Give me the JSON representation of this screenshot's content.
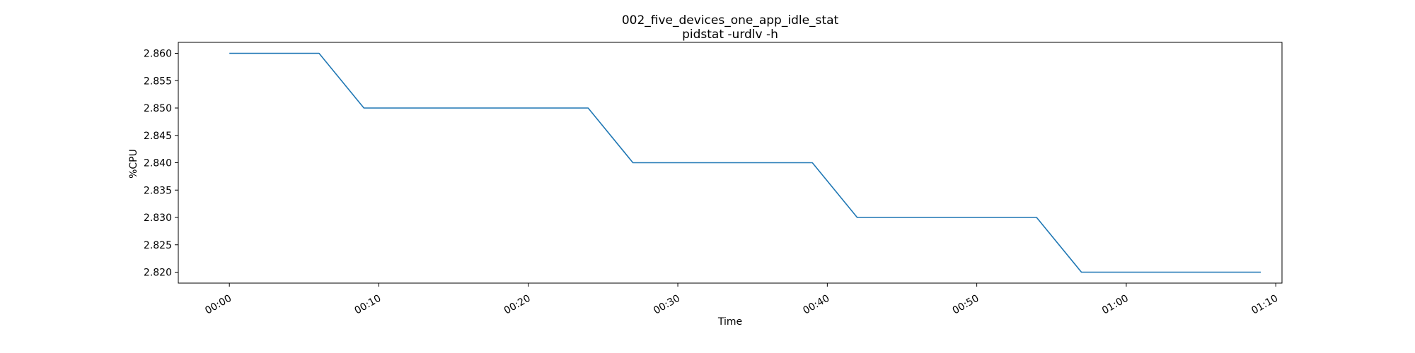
{
  "chart_data": {
    "type": "line",
    "title": "002_five_devices_one_app_idle_stat",
    "subtitle": "pidstat -urdlv -h",
    "xlabel": "Time",
    "ylabel": "%CPU",
    "x_ticks": [
      "00:00",
      "00:10",
      "00:20",
      "00:30",
      "00:40",
      "00:50",
      "01:00",
      "01:10"
    ],
    "y_ticks": [
      "2.820",
      "2.825",
      "2.830",
      "2.835",
      "2.840",
      "2.845",
      "2.850",
      "2.855",
      "2.860"
    ],
    "xlim": [
      "-00:03:25",
      "01:10:25"
    ],
    "ylim": [
      2.818,
      2.862
    ],
    "grid": false,
    "series": [
      {
        "color": "#1f77b4",
        "x": [
          "00:00",
          "00:06",
          "00:09",
          "00:24",
          "00:27",
          "00:39",
          "00:42",
          "00:54",
          "00:57",
          "01:09"
        ],
        "y": [
          2.86,
          2.86,
          2.85,
          2.85,
          2.84,
          2.84,
          2.83,
          2.83,
          2.82,
          2.82
        ]
      }
    ]
  }
}
